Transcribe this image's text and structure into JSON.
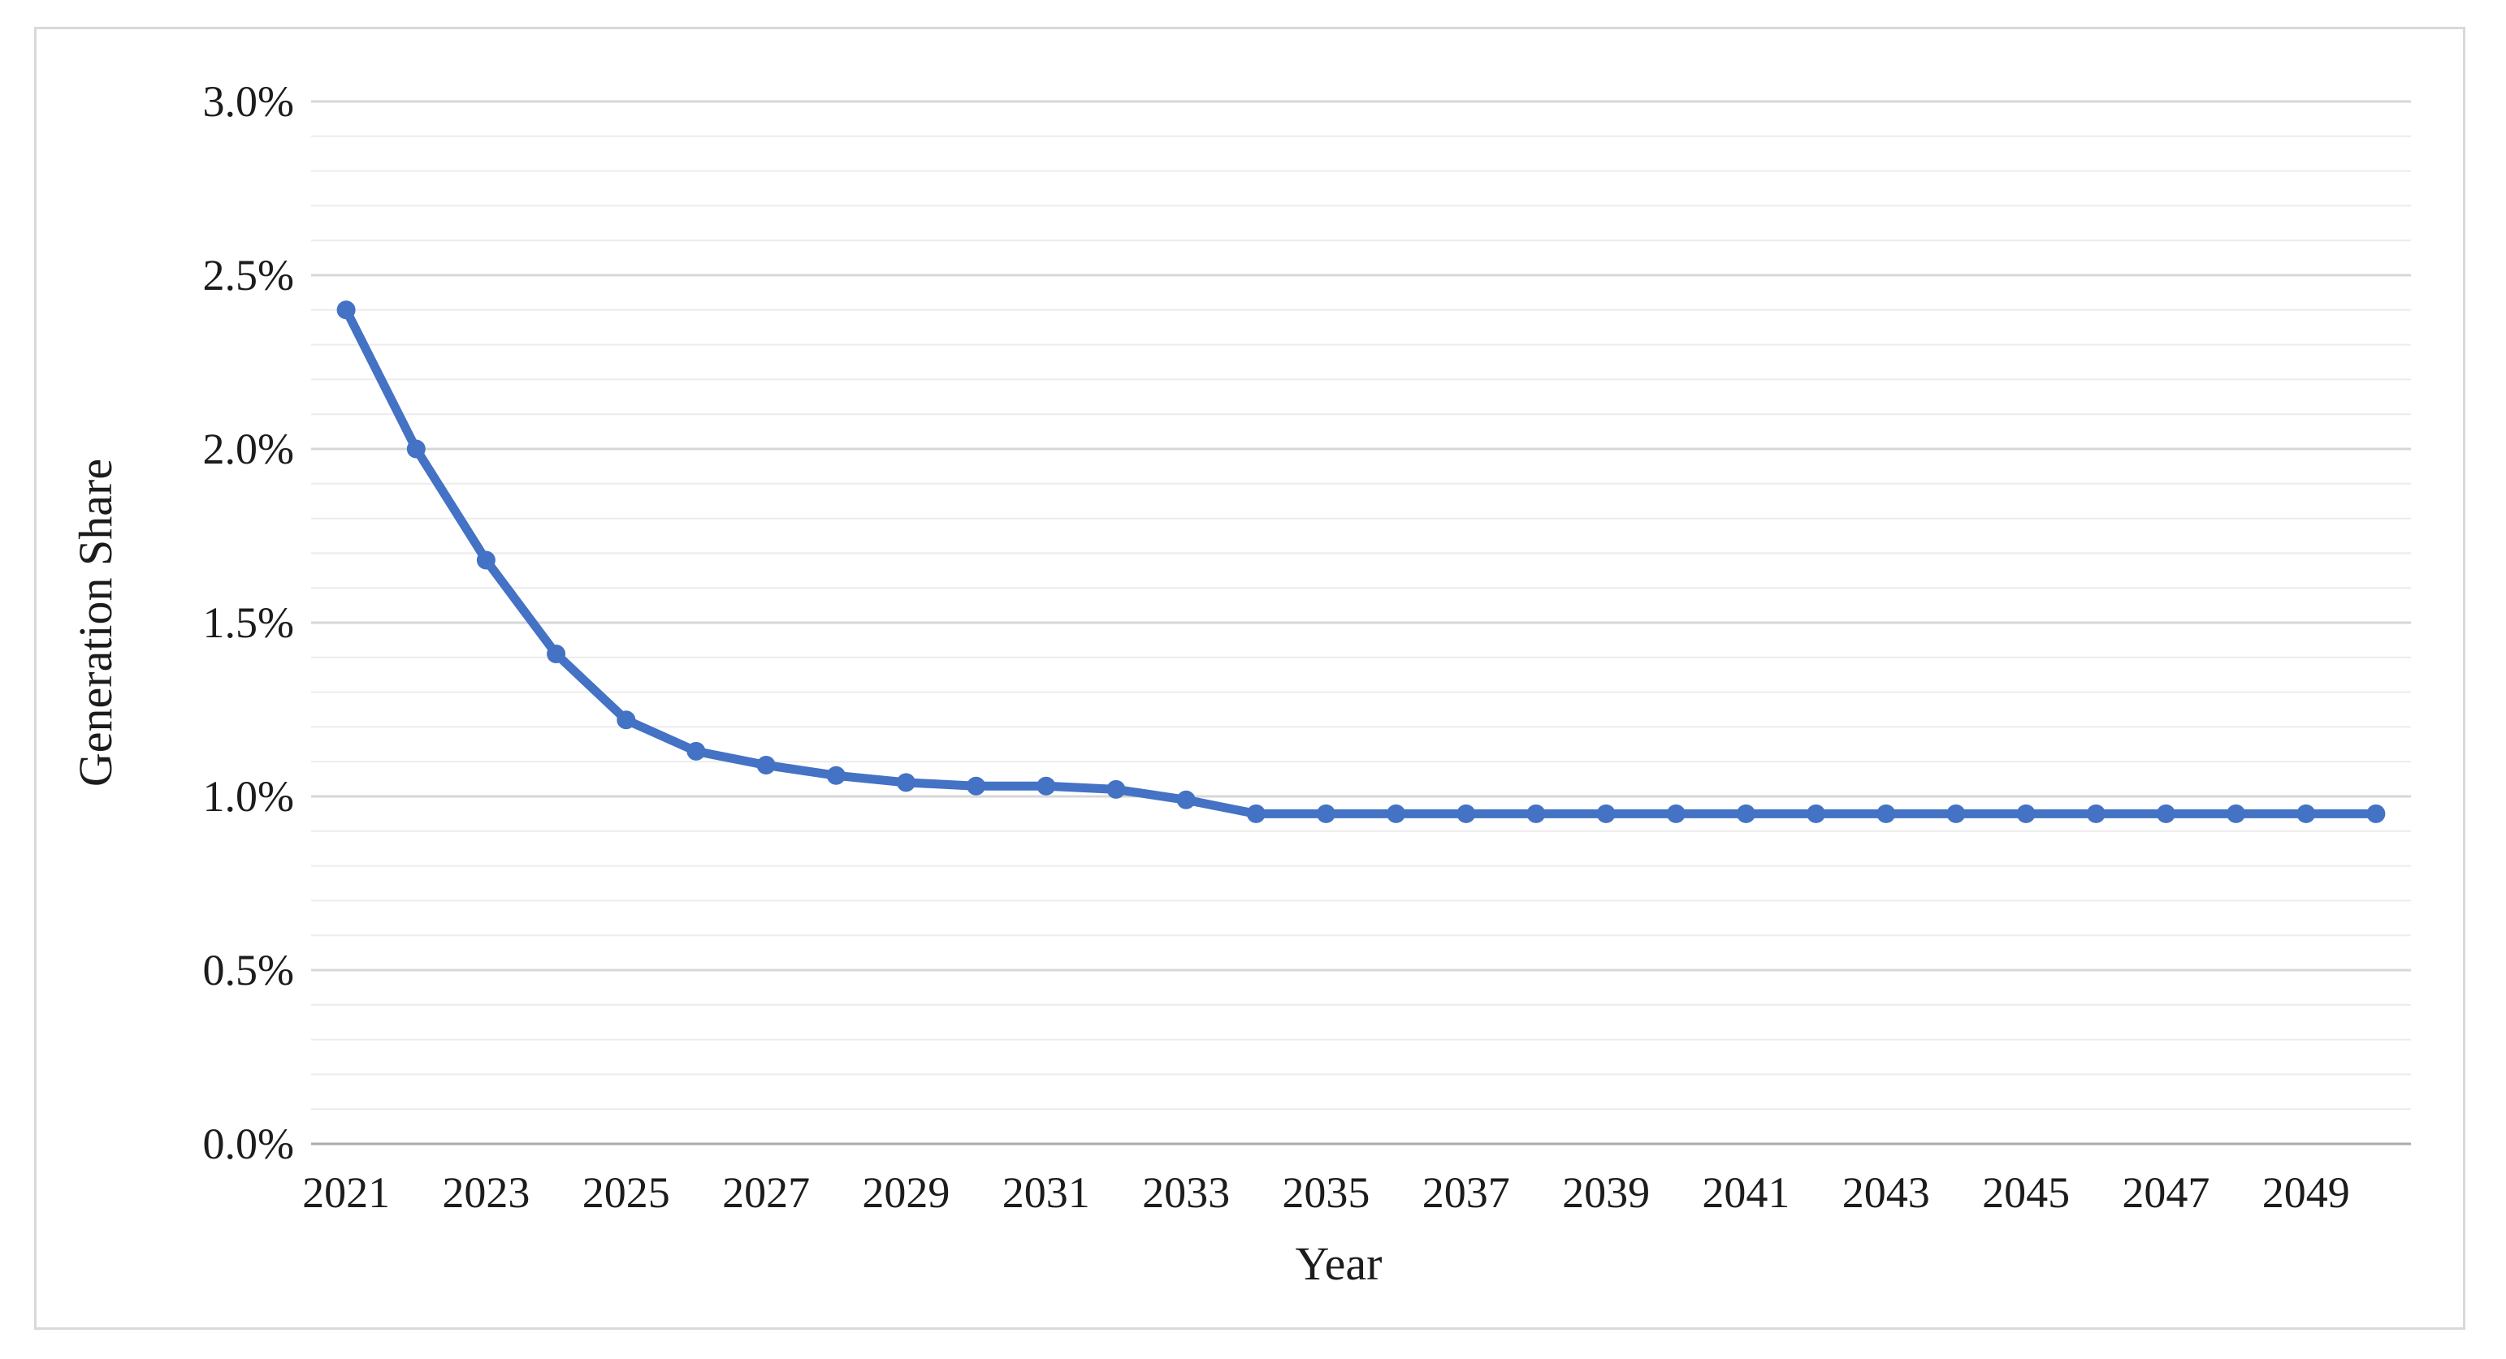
{
  "figure": {
    "background_color": "#ffffff",
    "border_color": "#d9d9d9"
  },
  "chart_data": {
    "type": "line",
    "title": "",
    "xlabel": "Year",
    "ylabel": "Generation Share",
    "x": [
      2021,
      2022,
      2023,
      2024,
      2025,
      2026,
      2027,
      2028,
      2029,
      2030,
      2031,
      2032,
      2033,
      2034,
      2035,
      2036,
      2037,
      2038,
      2039,
      2040,
      2041,
      2042,
      2043,
      2044,
      2045,
      2046,
      2047,
      2048,
      2049,
      2050
    ],
    "series": [
      {
        "name": "Generation Share",
        "values": [
          2.4,
          2.0,
          1.68,
          1.41,
          1.22,
          1.13,
          1.09,
          1.06,
          1.04,
          1.03,
          1.03,
          1.02,
          0.99,
          0.95,
          0.95,
          0.95,
          0.95,
          0.95,
          0.95,
          0.95,
          0.95,
          0.95,
          0.95,
          0.95,
          0.95,
          0.95,
          0.95,
          0.95,
          0.95,
          0.95
        ]
      }
    ],
    "x_tick_labels": [
      "2021",
      "2023",
      "2025",
      "2027",
      "2029",
      "2031",
      "2033",
      "2035",
      "2037",
      "2039",
      "2041",
      "2043",
      "2045",
      "2047",
      "2049"
    ],
    "x_tick_every": 2,
    "y_tick_labels": [
      "0.0%",
      "0.5%",
      "1.0%",
      "1.5%",
      "2.0%",
      "2.5%",
      "3.0%"
    ],
    "ylim": [
      0.0,
      3.0
    ],
    "y_major_step": 0.5,
    "y_minor_step": 0.1,
    "grid": "horizontal, minor and major, no vertical gridlines",
    "legend": "none",
    "line_color": "#4472C4",
    "marker": "circle",
    "gridline_minor_color": "#ececec",
    "gridline_major_color": "#d7d7d7",
    "axis_line_color": "#ababab",
    "text_color": "#1c1c1c"
  }
}
